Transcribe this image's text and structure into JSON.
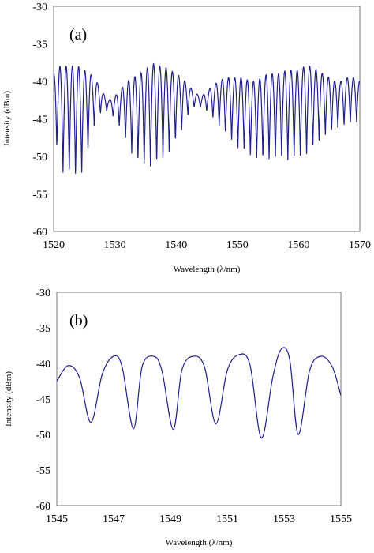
{
  "chart_data": [
    {
      "type": "line",
      "panel_label": "(a)",
      "xlabel": "Wavelength (λ/nm)",
      "ylabel": "Intensity (dBm)",
      "xlim": [
        1520,
        1570
      ],
      "ylim": [
        -60,
        -30
      ],
      "x_ticks": [
        "1520",
        "1530",
        "1540",
        "1550",
        "1560",
        "1570"
      ],
      "y_ticks": [
        "-30",
        "-35",
        "-40",
        "-45",
        "-50",
        "-55",
        "-60"
      ],
      "grid": false,
      "legend": "none",
      "line_color": "#1f1f8f",
      "series": [
        {
          "x": [
            1520,
            1521,
            1522,
            1523,
            1524,
            1525,
            1526,
            1527,
            1528,
            1529,
            1530,
            1531,
            1532,
            1533,
            1534,
            1535,
            1536,
            1537,
            1538,
            1539,
            1540,
            1541,
            1542,
            1543,
            1544,
            1545,
            1546,
            1547,
            1548,
            1549,
            1550,
            1551,
            1552,
            1553,
            1554,
            1555,
            1556,
            1557,
            1558,
            1559,
            1560,
            1561,
            1562,
            1563,
            1564,
            1565,
            1566,
            1567,
            1568,
            1569,
            1570
          ],
          "upper": [
            -39,
            -38,
            -38,
            -38,
            -38,
            -38.5,
            -39,
            -40,
            -41.5,
            -42.5,
            -42,
            -41,
            -40,
            -39.5,
            -39,
            -38.5,
            -37.5,
            -38,
            -38,
            -38.5,
            -39,
            -39.5,
            -40.5,
            -41.5,
            -42,
            -41.5,
            -40.5,
            -40,
            -39.5,
            -39.5,
            -39.5,
            -39.5,
            -40,
            -40,
            -39.5,
            -39,
            -39,
            -39,
            -38.5,
            -38.5,
            -38.5,
            -38,
            -38,
            -38.5,
            -39,
            -39.5,
            -40,
            -40,
            -39.5,
            -39.5,
            -40
          ],
          "lower": [
            -46,
            -52,
            -52.5,
            -52.5,
            -53,
            -52,
            -48,
            -45,
            -44,
            -44,
            -45,
            -46.5,
            -48.5,
            -50,
            -51,
            -51.5,
            -51.5,
            -51,
            -50.5,
            -49.5,
            -48,
            -46.5,
            -44.5,
            -43.5,
            -43.5,
            -44,
            -45,
            -46,
            -47,
            -48,
            -49,
            -49.5,
            -50,
            -50.5,
            -50.5,
            -50.5,
            -50.5,
            -50.5,
            -50.5,
            -50.5,
            -50.5,
            -50,
            -49.5,
            -48.5,
            -47.5,
            -47,
            -46.5,
            -46,
            -46,
            -45.5,
            -45.5
          ],
          "period_nm": 1.02
        }
      ]
    },
    {
      "type": "line",
      "panel_label": "(b)",
      "xlabel": "Wavelength (λ/nm)",
      "ylabel": "Intensity (dBm)",
      "xlim": [
        1545,
        1555
      ],
      "ylim": [
        -60,
        -30
      ],
      "x_ticks": [
        "1545",
        "1547",
        "1549",
        "1551",
        "1553",
        "1555"
      ],
      "y_ticks": [
        "-30",
        "-35",
        "-40",
        "-45",
        "-50",
        "-55",
        "-60"
      ],
      "grid": false,
      "legend": "none",
      "line_color": "#1f1f8f",
      "series": [
        {
          "x": [
            1545.0,
            1545.4,
            1545.8,
            1546.2,
            1546.6,
            1547.0,
            1547.3,
            1547.7,
            1548.0,
            1548.4,
            1548.7,
            1549.1,
            1549.4,
            1549.8,
            1550.2,
            1550.6,
            1551.0,
            1551.4,
            1551.8,
            1552.2,
            1552.6,
            1552.9,
            1553.2,
            1553.5,
            1553.9,
            1554.3,
            1554.7,
            1555.0
          ],
          "y": [
            -42.5,
            -40.3,
            -42.0,
            -48.3,
            -41.5,
            -39.0,
            -40.5,
            -49.2,
            -40.5,
            -39.0,
            -41.0,
            -49.3,
            -41.0,
            -39.0,
            -40.5,
            -48.5,
            -41.0,
            -38.8,
            -40.2,
            -50.5,
            -42.0,
            -38.0,
            -39.5,
            -50.0,
            -41.0,
            -39.0,
            -40.5,
            -44.5
          ]
        }
      ]
    }
  ]
}
